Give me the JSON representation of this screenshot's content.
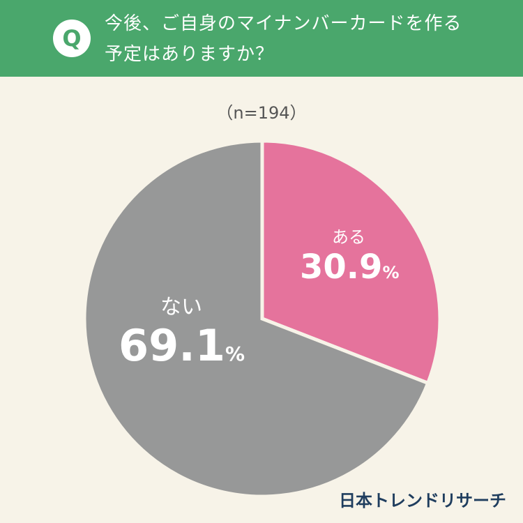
{
  "header": {
    "q_mark": "Q",
    "question_line1": "今後、ご自身のマイナンバーカードを作る",
    "question_line2": "予定はありますか？"
  },
  "sample_size": "（n=194）",
  "chart_data": {
    "type": "pie",
    "title": "今後、ご自身のマイナンバーカードを作る予定はありますか？",
    "sample": "n=194",
    "slices": [
      {
        "label": "ある",
        "value": 30.9,
        "value_text": "30.9",
        "unit": "%",
        "color": "#e5739c"
      },
      {
        "label": "ない",
        "value": 69.1,
        "value_text": "69.1",
        "unit": "%",
        "color": "#979898"
      }
    ],
    "start_angle": "12 o'clock, clockwise",
    "separator_color": "#f7f3e8"
  },
  "logo": "日本トレンドリサーチ"
}
